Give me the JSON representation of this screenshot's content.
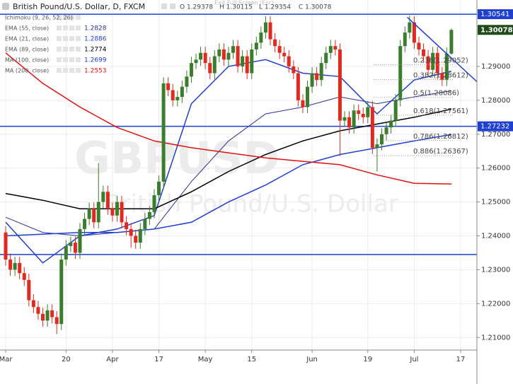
{
  "chart_data": {
    "type": "candlestick",
    "title": "British Pound/U.S. Dollar, D, FXCM",
    "ohlc_header": [
      "O 1.29378",
      "H 1.30115",
      "L 1.29354",
      "C 1.30078"
    ],
    "notice": "Exit Full Screen (Esc)",
    "watermark": [
      "GBPUSD",
      "British Pound/U.S. Dollar"
    ],
    "legend_extra": "Ichimoku (9, 26, 52, 26)",
    "up_color": "#3a7d2c",
    "down_color": "#e02a1f",
    "grid": true,
    "xlim": [
      -1.22,
      101.5
    ],
    "ylim": [
      1.2063,
      1.3096
    ],
    "xticks": [
      {
        "value": 0,
        "label": "Mar"
      },
      {
        "value": 13,
        "label": "20"
      },
      {
        "value": 23,
        "label": "Apr"
      },
      {
        "value": 33,
        "label": "17"
      },
      {
        "value": 43,
        "label": "May"
      },
      {
        "value": 53,
        "label": "15"
      },
      {
        "value": 66,
        "label": "Jun"
      },
      {
        "value": 78,
        "label": "19"
      },
      {
        "value": 88,
        "label": "Jul"
      },
      {
        "value": 98,
        "label": "17"
      }
    ],
    "yticks": [
      {
        "value": 1.21,
        "label": "1.21000"
      },
      {
        "value": 1.22,
        "label": "1.22000"
      },
      {
        "value": 1.23,
        "label": "1.23000"
      },
      {
        "value": 1.24,
        "label": "1.24000"
      },
      {
        "value": 1.25,
        "label": "1.25000"
      },
      {
        "value": 1.26,
        "label": "1.26000"
      },
      {
        "value": 1.27,
        "label": "1.27000"
      },
      {
        "value": 1.28,
        "label": "1.28000"
      },
      {
        "value": 1.29,
        "label": "1.29000"
      }
    ],
    "open": [
      1.241,
      1.233,
      1.23,
      1.232,
      1.229,
      1.227,
      1.221,
      1.219,
      1.217,
      1.215,
      1.218,
      1.216,
      1.214,
      1.233,
      1.237,
      1.238,
      1.235,
      1.242,
      1.245,
      1.248,
      1.244,
      1.25,
      1.253,
      1.248,
      1.246,
      1.25,
      1.244,
      1.242,
      1.24,
      1.238,
      1.242,
      1.245,
      1.247,
      1.252,
      1.256,
      1.285,
      1.283,
      1.28,
      1.281,
      1.284,
      1.287,
      1.291,
      1.292,
      1.294,
      1.291,
      1.288,
      1.293,
      1.295,
      1.292,
      1.294,
      1.296,
      1.29,
      1.293,
      1.288,
      1.295,
      1.297,
      1.3,
      1.303,
      1.298,
      1.296,
      1.294,
      1.293,
      1.29,
      1.288,
      1.28,
      1.278,
      1.284,
      1.288,
      1.286,
      1.291,
      1.294,
      1.296,
      1.295,
      1.274,
      1.275,
      1.272,
      1.277,
      1.276,
      1.275,
      1.278,
      1.266,
      1.267,
      1.27,
      1.272,
      1.274,
      1.28,
      1.296,
      1.3,
      1.303,
      1.297,
      1.295,
      1.293,
      1.289,
      1.294,
      1.288,
      1.286,
      1.29378
    ],
    "high": [
      1.2428,
      1.2348,
      1.2338,
      1.2338,
      1.2308,
      1.2288,
      1.2228,
      1.2208,
      1.2188,
      1.2198,
      1.2198,
      1.2178,
      1.2348,
      1.2388,
      1.2398,
      1.2398,
      1.2438,
      1.2468,
      1.2498,
      1.2498,
      1.2615,
      1.2548,
      1.2548,
      1.2498,
      1.2518,
      1.2518,
      1.2458,
      1.2438,
      1.2418,
      1.2438,
      1.2468,
      1.2488,
      1.2538,
      1.2578,
      1.2868,
      1.2868,
      1.2848,
      1.2828,
      1.2858,
      1.2888,
      1.2928,
      1.2938,
      1.2958,
      1.2958,
      1.2928,
      1.2948,
      1.2968,
      1.2968,
      1.2958,
      1.2978,
      1.2978,
      1.2948,
      1.2948,
      1.2968,
      1.2988,
      1.3018,
      1.3048,
      1.3048,
      1.2998,
      1.2978,
      1.2958,
      1.2948,
      1.2918,
      1.2898,
      1.2818,
      1.2858,
      1.2898,
      1.2898,
      1.2928,
      1.2958,
      1.2978,
      1.2978,
      1.2968,
      1.2768,
      1.2768,
      1.2788,
      1.2788,
      1.2778,
      1.2798,
      1.2798,
      1.2688,
      1.2718,
      1.2738,
      1.2758,
      1.2818,
      1.2978,
      1.3018,
      1.305,
      1.3048,
      1.2988,
      1.2968,
      1.2948,
      1.2958,
      1.2958,
      1.2898,
      1.2956,
      1.30115
    ],
    "low": [
      1.2312,
      1.2282,
      1.2282,
      1.2272,
      1.2252,
      1.2192,
      1.2172,
      1.2152,
      1.2132,
      1.2132,
      1.2142,
      1.211,
      1.2122,
      1.2312,
      1.2352,
      1.2332,
      1.2332,
      1.2402,
      1.2432,
      1.2422,
      1.2422,
      1.2482,
      1.2462,
      1.2442,
      1.2442,
      1.2422,
      1.2402,
      1.2365,
      1.2362,
      1.2362,
      1.2402,
      1.2432,
      1.2452,
      1.2502,
      1.2542,
      1.2812,
      1.2782,
      1.2782,
      1.2792,
      1.2822,
      1.2852,
      1.2892,
      1.2902,
      1.2892,
      1.2862,
      1.2862,
      1.2912,
      1.2902,
      1.2902,
      1.2922,
      1.2882,
      1.2882,
      1.2862,
      1.2862,
      1.2932,
      1.2952,
      1.2982,
      1.2962,
      1.2942,
      1.2922,
      1.2912,
      1.2882,
      1.2862,
      1.2782,
      1.2762,
      1.2762,
      1.2822,
      1.2842,
      1.2842,
      1.2892,
      1.2922,
      1.2932,
      1.2635,
      1.2722,
      1.2702,
      1.2702,
      1.2742,
      1.2732,
      1.2732,
      1.2642,
      1.259,
      1.2652,
      1.2682,
      1.2702,
      1.2722,
      1.2782,
      1.2942,
      1.2982,
      1.2952,
      1.2932,
      1.2912,
      1.2872,
      1.2872,
      1.2862,
      1.2842,
      1.2842,
      1.29354
    ],
    "close": [
      1.233,
      1.23,
      1.232,
      1.229,
      1.227,
      1.221,
      1.219,
      1.217,
      1.215,
      1.218,
      1.216,
      1.214,
      1.233,
      1.237,
      1.238,
      1.235,
      1.242,
      1.245,
      1.248,
      1.244,
      1.25,
      1.253,
      1.248,
      1.246,
      1.25,
      1.244,
      1.242,
      1.24,
      1.238,
      1.242,
      1.245,
      1.247,
      1.252,
      1.256,
      1.285,
      1.283,
      1.28,
      1.281,
      1.284,
      1.287,
      1.291,
      1.292,
      1.294,
      1.291,
      1.288,
      1.293,
      1.295,
      1.292,
      1.294,
      1.296,
      1.29,
      1.293,
      1.288,
      1.295,
      1.297,
      1.3,
      1.303,
      1.298,
      1.296,
      1.294,
      1.293,
      1.29,
      1.288,
      1.28,
      1.278,
      1.284,
      1.288,
      1.286,
      1.291,
      1.294,
      1.296,
      1.295,
      1.274,
      1.275,
      1.272,
      1.277,
      1.276,
      1.275,
      1.278,
      1.266,
      1.267,
      1.27,
      1.272,
      1.274,
      1.28,
      1.296,
      1.3,
      1.303,
      1.297,
      1.295,
      1.293,
      1.289,
      1.294,
      1.288,
      1.286,
      1.29378,
      1.30078
    ],
    "indicators": [
      {
        "name": "EMA (55, close)",
        "value": 1.2828,
        "color": "#2b2f9a",
        "x": [
          0,
          8,
          16,
          24,
          32,
          40,
          48,
          56,
          64,
          72,
          80,
          88,
          96
        ],
        "values": [
          1.2455,
          1.241,
          1.24,
          1.241,
          1.242,
          1.256,
          1.268,
          1.276,
          1.278,
          1.281,
          1.279,
          1.281,
          1.2828
        ]
      },
      {
        "name": "EMA (21, close)",
        "value": 1.2886,
        "color": "#1f3fd0",
        "x": [
          0,
          8,
          16,
          24,
          32,
          40,
          48,
          56,
          64,
          72,
          80,
          88,
          96
        ],
        "values": [
          1.244,
          1.232,
          1.24,
          1.242,
          1.246,
          1.279,
          1.29,
          1.292,
          1.288,
          1.287,
          1.276,
          1.286,
          1.2886
        ]
      },
      {
        "name": "EMA (89, close)",
        "value": 1.2774,
        "color": "#000000",
        "x": [
          0,
          8,
          16,
          24,
          32,
          40,
          48,
          56,
          64,
          72,
          80,
          88,
          96
        ],
        "values": [
          1.2525,
          1.2505,
          1.248,
          1.248,
          1.248,
          1.253,
          1.259,
          1.264,
          1.268,
          1.271,
          1.273,
          1.275,
          1.2774
        ]
      },
      {
        "name": "MA (100, close)",
        "value": 1.2699,
        "color": "#1f3fd0",
        "x": [
          0,
          8,
          16,
          24,
          32,
          40,
          48,
          56,
          64,
          72,
          80,
          88,
          96
        ],
        "values": [
          1.24,
          1.2405,
          1.241,
          1.241,
          1.242,
          1.244,
          1.25,
          1.255,
          1.261,
          1.264,
          1.266,
          1.268,
          1.2699
        ]
      },
      {
        "name": "MA (200, close)",
        "value": 1.2553,
        "color": "#e01010",
        "x": [
          0,
          8,
          16,
          24,
          32,
          40,
          48,
          56,
          64,
          72,
          80,
          88,
          96
        ],
        "values": [
          1.294,
          1.285,
          1.278,
          1.272,
          1.268,
          1.266,
          1.2645,
          1.263,
          1.262,
          1.261,
          1.258,
          1.2555,
          1.2553
        ]
      }
    ],
    "hlines": [
      {
        "value": 1.30541,
        "color": "#1f3fd0",
        "labelled": true
      },
      {
        "value": 1.27232,
        "color": "#1f3fd0",
        "labelled": true
      },
      {
        "value": 1.2345,
        "color": "#1f3fd0",
        "labelled": false
      }
    ],
    "last_price": {
      "value": 1.30078,
      "color": "#1f4a1a"
    },
    "trendline": {
      "color": "#1f3fd0",
      "x": [
        86.5,
        101.5
      ],
      "values": [
        1.3045,
        1.2855
      ]
    },
    "fib_levels": [
      {
        "label": "0.236(1.29052)",
        "value": 1.29052
      },
      {
        "label": "0.382(1.28612)",
        "value": 1.28612
      },
      {
        "label": "0.5(1.28086)",
        "value": 1.28086
      },
      {
        "label": "0.618(1.27561)",
        "value": 1.27561
      },
      {
        "label": "0.786(1.26812)",
        "value": 1.26812
      },
      {
        "label": "0.886(1.26367)",
        "value": 1.26367
      }
    ]
  }
}
